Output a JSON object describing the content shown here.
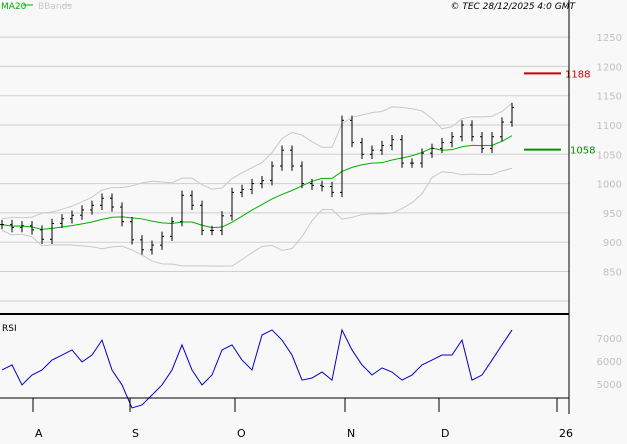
{
  "header": {
    "legend_ma": "MA20",
    "legend_bbands": "BBands",
    "copyright": "© TEC 28/12/2025 4:0 GMT"
  },
  "colors": {
    "ma": "#00b000",
    "bbands": "#c8c8c8",
    "price": "#000000",
    "rsi": "#0000cc",
    "resistance": "#cc0000",
    "support": "#009000",
    "axis_label": "#c0c0c0"
  },
  "chart_data": [
    {
      "type": "line",
      "panel": "price",
      "ylim": [
        800,
        1280
      ],
      "yticks": [
        "1250",
        "1200",
        "1150",
        "1100",
        "1050",
        "1000",
        "950",
        "900",
        "850"
      ],
      "grid": true,
      "xticks": [
        "A",
        "S",
        "O",
        "N",
        "D",
        "26"
      ],
      "closes": [
        930,
        925,
        928,
        921,
        905,
        932,
        940,
        946,
        955,
        963,
        975,
        960,
        935,
        904,
        887,
        895,
        910,
        935,
        980,
        963,
        920,
        920,
        945,
        985,
        990,
        1000,
        1005,
        1030,
        1057,
        1030,
        1000,
        997,
        995,
        985,
        1108,
        1070,
        1050,
        1057,
        1065,
        1075,
        1035,
        1035,
        1052,
        1060,
        1070,
        1080,
        1100,
        1080,
        1060,
        1080,
        1105,
        1130
      ],
      "levels": [
        {
          "label": "1188",
          "value": 1188,
          "color": "#cc0000"
        },
        {
          "label": "1058",
          "value": 1058,
          "color": "#009000"
        }
      ]
    },
    {
      "type": "line",
      "panel": "rsi",
      "title": "RSI",
      "ylim": [
        35,
        80
      ],
      "yticks": [
        "7000",
        "6000",
        "5000"
      ],
      "values": [
        56.1,
        58.3,
        49.6,
        53.9,
        56.1,
        60.4,
        62.6,
        64.8,
        59.6,
        62.6,
        69.1,
        56.1,
        49.6,
        39.6,
        40.9,
        45.2,
        49.6,
        56.1,
        67.0,
        56.1,
        49.6,
        53.9,
        64.8,
        67.0,
        60.4,
        56.1,
        71.3,
        73.5,
        69.1,
        62.6,
        51.7,
        52.6,
        55.2,
        51.7,
        73.5,
        64.8,
        58.3,
        53.9,
        57.0,
        55.2,
        51.7,
        53.9,
        58.3,
        60.4,
        62.6,
        62.6,
        69.1,
        51.7,
        53.9,
        60.4,
        67.0,
        73.5
      ]
    }
  ]
}
